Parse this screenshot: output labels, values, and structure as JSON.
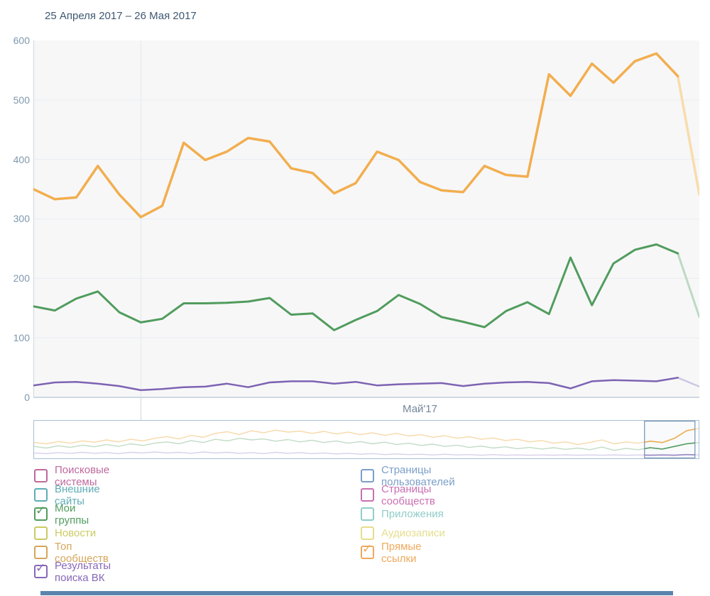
{
  "header": {
    "date_range": "25 Апреля 2017 – 26 Мая 2017"
  },
  "chart_data": {
    "type": "line",
    "title": "25 Апреля 2017 – 26 Мая 2017",
    "ylim": [
      0,
      600
    ],
    "yticks": [
      600,
      500,
      400,
      300,
      200,
      100,
      0
    ],
    "x_axis_month_label": "Май'17",
    "x_range": "25 Apr 2017 - 26 May 2017 (32 days)",
    "grid": true,
    "month_divider_day_index": 5,
    "faded_last_segment": true,
    "series": [
      {
        "name": "Прямые ссылки",
        "color": "#f2ae4e",
        "faded_color": "#f8dcab",
        "width": 3.5,
        "values": [
          350,
          333,
          336,
          389,
          341,
          303,
          322,
          428,
          399,
          413,
          436,
          430,
          385,
          377,
          343,
          360,
          413,
          399,
          362,
          348,
          345,
          389,
          374,
          371,
          543,
          507,
          561,
          529,
          565,
          578,
          540,
          341
        ]
      },
      {
        "name": "Мои группы",
        "color": "#519c5d",
        "faded_color": "#bdd9c3",
        "width": 3,
        "values": [
          153,
          146,
          166,
          178,
          143,
          126,
          132,
          158,
          158,
          159,
          161,
          167,
          139,
          141,
          113,
          130,
          145,
          172,
          157,
          135,
          127,
          118,
          145,
          160,
          140,
          235,
          155,
          225,
          248,
          257,
          242,
          135
        ]
      },
      {
        "name": "Результаты поиска ВК",
        "color": "#7d63b2",
        "faded_color": "#d0c6e4",
        "width": 2.5,
        "values": [
          20,
          25,
          26,
          23,
          19,
          12,
          14,
          17,
          18,
          23,
          17,
          25,
          27,
          27,
          23,
          26,
          20,
          22,
          23,
          24,
          19,
          23,
          25,
          26,
          24,
          15,
          27,
          29,
          28,
          27,
          33,
          18
        ]
      }
    ],
    "navigator": {
      "window_start_pct": 91.8,
      "window_end_pct": 99.5,
      "series": [
        {
          "name": "Прямые ссылки",
          "pale_color": "#f7d9a8",
          "color": "#f2ae4e",
          "values": [
            42,
            38,
            45,
            40,
            47,
            43,
            50,
            44,
            52,
            47,
            55,
            60,
            53,
            64,
            58,
            70,
            75,
            66,
            78,
            72,
            80,
            74,
            77,
            70,
            76,
            68,
            74,
            66,
            72,
            64,
            70,
            62,
            66,
            58,
            63,
            55,
            60,
            52,
            56,
            48,
            52,
            44,
            48,
            40,
            44,
            36,
            42,
            50,
            38,
            44,
            40,
            46,
            42,
            55,
            78,
            85
          ]
        },
        {
          "name": "Мои группы",
          "pale_color": "#c2dcc6",
          "color": "#519c5d",
          "values": [
            30,
            25,
            32,
            27,
            34,
            29,
            36,
            30,
            38,
            33,
            40,
            44,
            38,
            48,
            42,
            52,
            47,
            55,
            50,
            53,
            46,
            51,
            44,
            49,
            42,
            47,
            40,
            45,
            38,
            43,
            36,
            40,
            33,
            37,
            30,
            34,
            27,
            31,
            25,
            29,
            23,
            27,
            22,
            26,
            21,
            25,
            20,
            28,
            18,
            24,
            20,
            26,
            22,
            30,
            38,
            42
          ]
        },
        {
          "name": "Результаты поиска ВК",
          "pale_color": "#d8d0ea",
          "color": "#9b86c8",
          "values": [
            10,
            8,
            11,
            9,
            12,
            9,
            11,
            8,
            12,
            10,
            13,
            10,
            12,
            9,
            13,
            10,
            12,
            9,
            11,
            8,
            12,
            9,
            11,
            8,
            10,
            7,
            9,
            6,
            8,
            5,
            7,
            5,
            6,
            4,
            6,
            4,
            5,
            3,
            5,
            3,
            4,
            3,
            4,
            3,
            4,
            3,
            4,
            3,
            4,
            3,
            4,
            3,
            4,
            3,
            5,
            4
          ]
        }
      ]
    }
  },
  "legend": {
    "columns": [
      [
        {
          "label": "Поисковые системы",
          "color": "#c0699e",
          "checked": false
        },
        {
          "label": "Внешние сайты",
          "color": "#5fadb6",
          "checked": false
        },
        {
          "label": "Мои группы",
          "color": "#519c5d",
          "checked": true
        },
        {
          "label": "Новости",
          "color": "#cbcb63",
          "checked": false
        },
        {
          "label": "Топ сообществ",
          "color": "#d5a65a",
          "checked": false
        },
        {
          "label": "Результаты поиска ВК",
          "color": "#8768b8",
          "checked": true
        }
      ],
      [
        {
          "label": "Страницы пользователей",
          "color": "#7b9fc7",
          "checked": false
        },
        {
          "label": "Страницы сообществ",
          "color": "#ca70b2",
          "checked": false
        },
        {
          "label": "Приложения",
          "color": "#8fcdc9",
          "checked": false
        },
        {
          "label": "Аудиозаписи",
          "color": "#e5de8d",
          "checked": false
        },
        {
          "label": "Прямые ссылки",
          "color": "#f0a95c",
          "checked": true
        }
      ]
    ]
  },
  "colors": {
    "title_text": "#3e5872",
    "axis_text": "#7f98ae",
    "month_text": "#72879c",
    "plot_bg": "#f7f7f8",
    "gridline": "#e9edf2",
    "axis_line": "#cfd7e0",
    "navigator_border": "#aabfd4",
    "brush_border": "#7491b0",
    "bottom_bar": "#5b84ad"
  }
}
